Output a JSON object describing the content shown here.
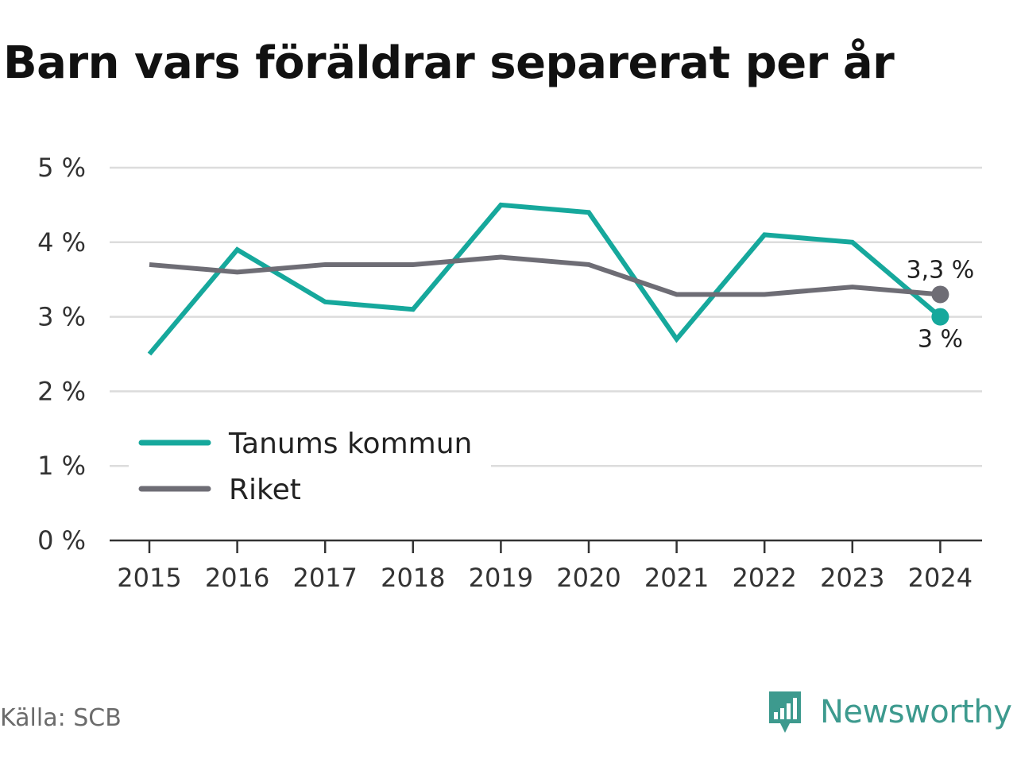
{
  "title": "Barn vars föräldrar separerat per år",
  "source": "Källa: SCB",
  "brand": "Newsworthy",
  "colors": {
    "tanum": "#16a89c",
    "riket": "#6e6d75",
    "grid": "#dcdcdc",
    "axis": "#333333",
    "brand": "#3d9a8e"
  },
  "chart_data": {
    "type": "line",
    "categories": [
      "2015",
      "2016",
      "2017",
      "2018",
      "2019",
      "2020",
      "2021",
      "2022",
      "2023",
      "2024"
    ],
    "series": [
      {
        "name": "Tanums kommun",
        "values": [
          2.5,
          3.9,
          3.2,
          3.1,
          4.5,
          4.4,
          2.7,
          4.1,
          4.0,
          3.0
        ]
      },
      {
        "name": "Riket",
        "values": [
          3.7,
          3.6,
          3.7,
          3.7,
          3.8,
          3.7,
          3.3,
          3.3,
          3.4,
          3.3
        ]
      }
    ],
    "ylim": [
      0,
      5
    ],
    "yticks": [
      {
        "value": 0,
        "label": "0 %"
      },
      {
        "value": 1,
        "label": "1 %"
      },
      {
        "value": 2,
        "label": "2 %"
      },
      {
        "value": 3,
        "label": "3 %"
      },
      {
        "value": 4,
        "label": "4 %"
      },
      {
        "value": 5,
        "label": "5 %"
      }
    ],
    "end_labels": [
      "3 %",
      "3,3 %"
    ],
    "legend_position": "bottom-left",
    "grid": true
  }
}
